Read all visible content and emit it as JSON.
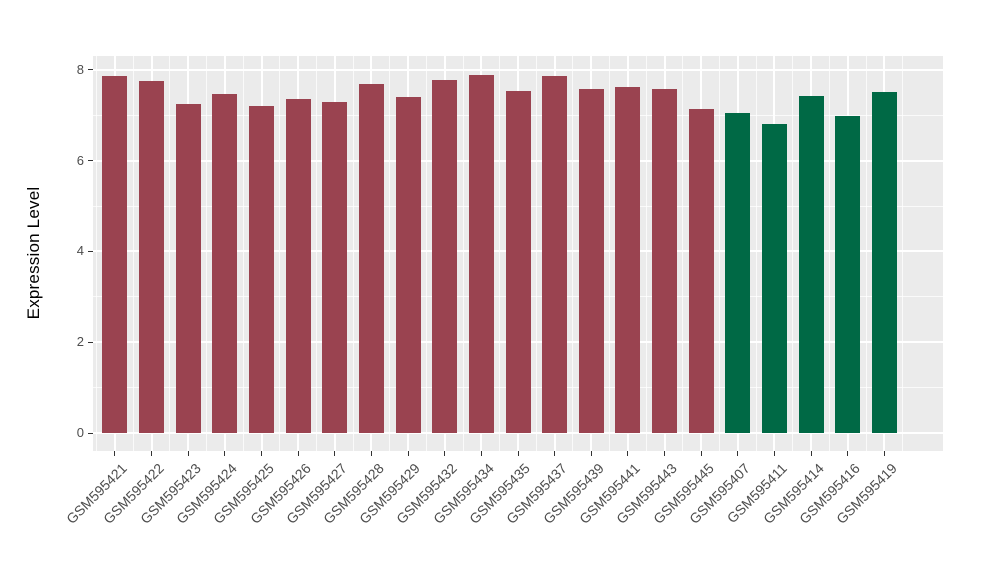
{
  "chart_data": {
    "type": "bar",
    "title": "",
    "xlabel": "",
    "ylabel": "Expression Level",
    "categories": [
      "GSM595421",
      "GSM595422",
      "GSM595423",
      "GSM595424",
      "GSM595425",
      "GSM595426",
      "GSM595427",
      "GSM595428",
      "GSM595429",
      "GSM595432",
      "GSM595434",
      "GSM595435",
      "GSM595437",
      "GSM595439",
      "GSM595441",
      "GSM595443",
      "GSM595445",
      "GSM595407",
      "GSM595411",
      "GSM595414",
      "GSM595416",
      "GSM595419"
    ],
    "values": [
      7.85,
      7.75,
      7.24,
      7.46,
      7.2,
      7.35,
      7.29,
      7.69,
      7.4,
      7.78,
      7.89,
      7.52,
      7.85,
      7.58,
      7.62,
      7.57,
      7.13,
      7.05,
      6.81,
      7.42,
      6.97,
      7.51
    ],
    "bar_colors": [
      "#9A4350",
      "#9A4350",
      "#9A4350",
      "#9A4350",
      "#9A4350",
      "#9A4350",
      "#9A4350",
      "#9A4350",
      "#9A4350",
      "#9A4350",
      "#9A4350",
      "#9A4350",
      "#9A4350",
      "#9A4350",
      "#9A4350",
      "#9A4350",
      "#9A4350",
      "#006945",
      "#006945",
      "#006945",
      "#006945",
      "#006945"
    ],
    "yticks": [
      0,
      2,
      4,
      6,
      8
    ],
    "ylim": [
      0,
      8.3
    ],
    "axis_range": [
      -0.39,
      8.3
    ],
    "grid": true,
    "legend_position": "none",
    "panel_bg": "#EBEBEB",
    "grid_color": "#FFFFFF",
    "tick_color": "#333333",
    "axis_text_color": "#4D4D4D",
    "axis_title_color": "#000000"
  }
}
